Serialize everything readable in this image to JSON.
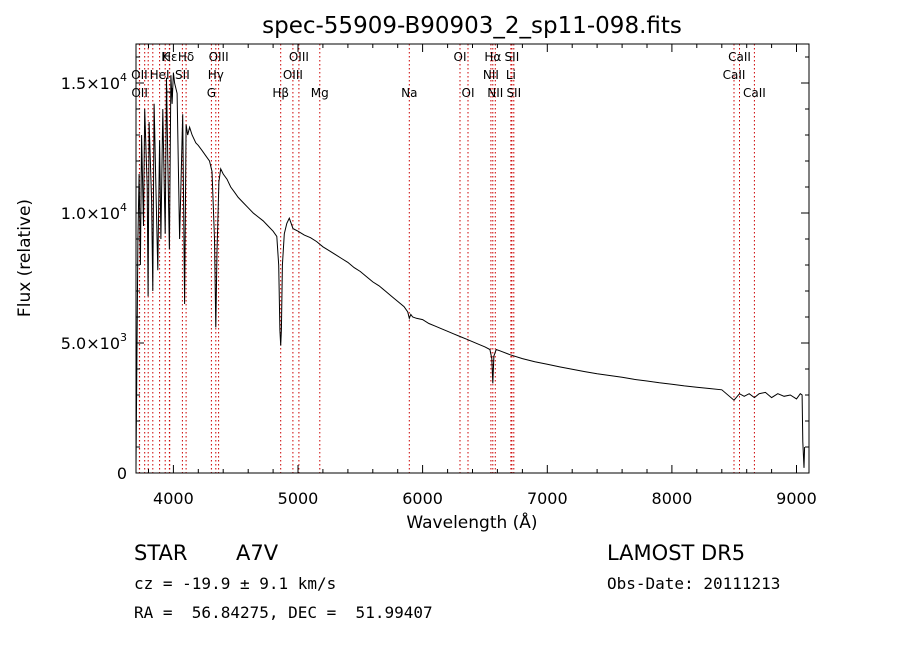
{
  "chart_data": {
    "type": "line",
    "title": "spec-55909-B90903_2_sp11-098.fits",
    "xlabel": "Wavelength (Å)",
    "ylabel": "Flux (relative)",
    "xlim": [
      3700,
      9100
    ],
    "ylim": [
      0,
      16500
    ],
    "x_ticks": [
      4000,
      5000,
      6000,
      7000,
      8000,
      9000
    ],
    "x_tick_labels": [
      "4000",
      "5000",
      "6000",
      "7000",
      "8000",
      "9000"
    ],
    "y_ticks": [
      0,
      5000,
      10000,
      15000
    ],
    "y_tick_labels": [
      {
        "base": "0",
        "exp": ""
      },
      {
        "base": "5.0×10",
        "exp": "3"
      },
      {
        "base": "1.0×10",
        "exp": "4"
      },
      {
        "base": "1.5×10",
        "exp": "4"
      }
    ],
    "line_color": "#000000",
    "marker_color": "#cc0000",
    "spectrum": {
      "x": [
        3700,
        3715,
        3725,
        3735,
        3745,
        3760,
        3770,
        3790,
        3797,
        3805,
        3825,
        3835,
        3845,
        3860,
        3875,
        3889,
        3900,
        3915,
        3925,
        3934,
        3945,
        3955,
        3968,
        3980,
        3990,
        4000,
        4010,
        4030,
        4050,
        4075,
        4090,
        4102,
        4115,
        4130,
        4150,
        4180,
        4200,
        4230,
        4260,
        4290,
        4310,
        4330,
        4340,
        4350,
        4365,
        4380,
        4400,
        4430,
        4460,
        4490,
        4520,
        4560,
        4600,
        4640,
        4680,
        4720,
        4760,
        4800,
        4830,
        4845,
        4855,
        4861,
        4867,
        4875,
        4890,
        4910,
        4930,
        4960,
        5000,
        5050,
        5100,
        5150,
        5200,
        5250,
        5300,
        5350,
        5400,
        5450,
        5500,
        5550,
        5600,
        5650,
        5700,
        5750,
        5800,
        5850,
        5880,
        5893,
        5905,
        5920,
        5950,
        6000,
        6050,
        6100,
        6150,
        6200,
        6250,
        6300,
        6350,
        6400,
        6450,
        6500,
        6540,
        6555,
        6563,
        6572,
        6590,
        6620,
        6700,
        6800,
        6900,
        7000,
        7100,
        7200,
        7300,
        7400,
        7500,
        7600,
        7700,
        7800,
        7900,
        8000,
        8100,
        8200,
        8300,
        8400,
        8498,
        8542,
        8580,
        8620,
        8662,
        8700,
        8750,
        8800,
        8850,
        8900,
        8950,
        9000,
        9030,
        9045,
        9050,
        9060,
        9065
      ],
      "y": [
        200,
        9000,
        11500,
        8000,
        13000,
        9500,
        14000,
        11000,
        6800,
        13500,
        10500,
        7000,
        14200,
        11000,
        7800,
        12800,
        9000,
        14000,
        11500,
        9200,
        15200,
        12000,
        8600,
        15300,
        14200,
        15400,
        15000,
        14600,
        9000,
        13800,
        6500,
        13400,
        13000,
        13300,
        13000,
        12700,
        12600,
        12400,
        12200,
        12000,
        11600,
        9000,
        5600,
        8500,
        11200,
        11700,
        11500,
        11300,
        11000,
        10800,
        10600,
        10400,
        10200,
        10000,
        9850,
        9700,
        9500,
        9300,
        9100,
        8000,
        5500,
        4900,
        5500,
        8000,
        9200,
        9600,
        9800,
        9400,
        9300,
        9150,
        9050,
        8900,
        8700,
        8550,
        8400,
        8250,
        8100,
        7900,
        7750,
        7550,
        7350,
        7200,
        7000,
        6800,
        6600,
        6400,
        6200,
        5950,
        6100,
        6000,
        5950,
        5900,
        5750,
        5650,
        5550,
        5450,
        5350,
        5250,
        5150,
        5050,
        4950,
        4850,
        4750,
        4400,
        3450,
        4500,
        4750,
        4700,
        4550,
        4400,
        4280,
        4180,
        4080,
        3990,
        3900,
        3820,
        3750,
        3680,
        3600,
        3540,
        3470,
        3410,
        3350,
        3300,
        3250,
        3200,
        2800,
        3050,
        2950,
        3050,
        2900,
        3050,
        3100,
        2900,
        3050,
        2950,
        3000,
        2850,
        3050,
        3000,
        1200,
        200,
        1000
      ]
    },
    "line_markers": [
      {
        "label": "Hε",
        "x": 3970,
        "row": 1
      },
      {
        "label": "K",
        "x": 3934,
        "row": 1
      },
      {
        "label": "Hδ",
        "x": 4102,
        "row": 1
      },
      {
        "label": "OIII",
        "x": 4363,
        "row": 1
      },
      {
        "label": "OIII",
        "x": 5007,
        "row": 1
      },
      {
        "label": "OI",
        "x": 6300,
        "row": 1
      },
      {
        "label": "Hα",
        "x": 6563,
        "row": 1
      },
      {
        "label": "SII",
        "x": 6716,
        "row": 1
      },
      {
        "label": "CaII",
        "x": 8542,
        "row": 1
      },
      {
        "label": "OII",
        "x": 3727,
        "row": 2
      },
      {
        "label": "HeI",
        "x": 3889,
        "row": 2
      },
      {
        "label": "SII",
        "x": 4072,
        "row": 2
      },
      {
        "label": "Hγ",
        "x": 4340,
        "row": 2
      },
      {
        "label": "OIII",
        "x": 4959,
        "row": 2
      },
      {
        "label": "NII",
        "x": 6548,
        "row": 2
      },
      {
        "label": "Li",
        "x": 6708,
        "row": 2
      },
      {
        "label": "CaII",
        "x": 8498,
        "row": 2
      },
      {
        "label": "OII",
        "x": 3729,
        "row": 3
      },
      {
        "label": "H",
        "x": 3968,
        "row": 3
      },
      {
        "label": "G",
        "x": 4305,
        "row": 3
      },
      {
        "label": "Hβ",
        "x": 4861,
        "row": 3
      },
      {
        "label": "Mg",
        "x": 5175,
        "row": 3
      },
      {
        "label": "Na",
        "x": 5893,
        "row": 3
      },
      {
        "label": "OI",
        "x": 6364,
        "row": 3
      },
      {
        "label": "NII",
        "x": 6583,
        "row": 3
      },
      {
        "label": "SII",
        "x": 6731,
        "row": 3
      },
      {
        "label": "CaII",
        "x": 8662,
        "row": 3
      }
    ],
    "marker_lines_x": [
      3727,
      3729,
      3770,
      3798,
      3835,
      3889,
      3934,
      3968,
      3970,
      4072,
      4102,
      4305,
      4340,
      4363,
      4861,
      4959,
      5007,
      5175,
      5893,
      6300,
      6364,
      6548,
      6563,
      6583,
      6708,
      6716,
      6731,
      8498,
      8542,
      8662
    ]
  },
  "info": {
    "object_type": "STAR",
    "subclass": "A7V",
    "survey": "LAMOST DR5",
    "cz": "cz = -19.9 ± 9.1 km/s",
    "obs_date": "Obs-Date: 20111213",
    "coords": "RA =  56.84275, DEC =  51.99407"
  }
}
